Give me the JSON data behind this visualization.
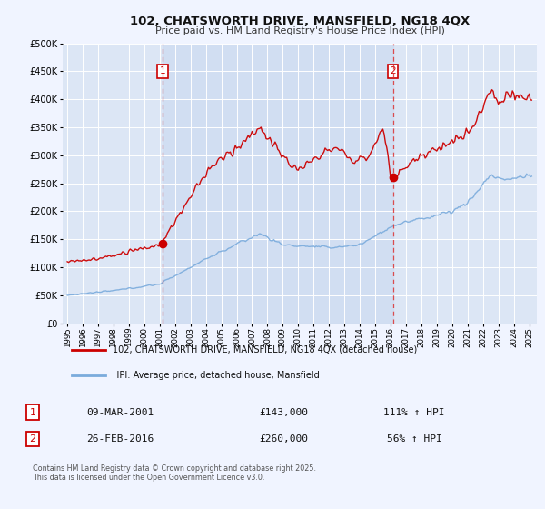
{
  "title": "102, CHATSWORTH DRIVE, MANSFIELD, NG18 4QX",
  "subtitle": "Price paid vs. HM Land Registry's House Price Index (HPI)",
  "bg_color": "#f0f4ff",
  "plot_bg_color": "#dce6f5",
  "shaded_region_color": "#ccd9f0",
  "grid_color": "#ffffff",
  "hpi_color": "#7aabdc",
  "price_color": "#cc0000",
  "marker_color": "#cc0000",
  "vline_color": "#dd3333",
  "legend_line1": "102, CHATSWORTH DRIVE, MANSFIELD, NG18 4QX (detached house)",
  "legend_line2": "HPI: Average price, detached house, Mansfield",
  "table_row1_num": "1",
  "table_row1_date": "09-MAR-2001",
  "table_row1_price": "£143,000",
  "table_row1_hpi": "111% ↑ HPI",
  "table_row2_num": "2",
  "table_row2_date": "26-FEB-2016",
  "table_row2_price": "£260,000",
  "table_row2_hpi": "56% ↑ HPI",
  "footer": "Contains HM Land Registry data © Crown copyright and database right 2025.\nThis data is licensed under the Open Government Licence v3.0.",
  "ylim": [
    0,
    500000
  ],
  "xlim_start": 1994.7,
  "xlim_end": 2025.5,
  "sale1_year": 2001.19,
  "sale1_price": 143000,
  "sale2_year": 2016.15,
  "sale2_price": 260000
}
